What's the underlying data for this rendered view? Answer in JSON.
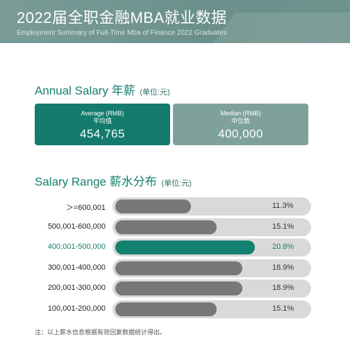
{
  "header": {
    "title": "2022届全职金融MBA就业数据",
    "subtitle": "Employment Summary of Full-Time Mba of Finance 2022 Graduates"
  },
  "annual_salary": {
    "title": "Annual Salary 年薪",
    "unit": "(单位:元)",
    "average": {
      "label": "Average (RMB)",
      "sublabel": "平均值",
      "value": "454,765"
    },
    "median": {
      "label": "Median (RMB)",
      "sublabel": "中位数",
      "value": "400,000"
    }
  },
  "salary_range": {
    "title": "Salary Range 薪水分布",
    "unit": "(单位:元)"
  },
  "note": "注：以上薪水信息根据有效回复数据统计得出。",
  "colors": {
    "accent": "#157c6d",
    "muted_card": "#7ea19c",
    "bar_gray": "#777777",
    "track": "#d9d9d9"
  },
  "chart_data": {
    "type": "bar",
    "orientation": "horizontal",
    "categories": [
      ">=600,001",
      "500,001-600,000",
      "400,001-500,000",
      "300,001-400,000",
      "200,001-300,000",
      "100,001-200,000"
    ],
    "category_display": [
      "＞=600,001",
      "500,001-600,000",
      "400,001-500,000",
      "300,001-400,000",
      "200,001-300,000",
      "100,001-200,000"
    ],
    "values": [
      11.3,
      15.1,
      20.8,
      18.9,
      18.9,
      15.1
    ],
    "value_labels": [
      "11.3%",
      "15.1%",
      "20.8%",
      "18.9%",
      "18.9%",
      "15.1%"
    ],
    "highlight_index": 2,
    "xlim": [
      0,
      21.3
    ]
  }
}
